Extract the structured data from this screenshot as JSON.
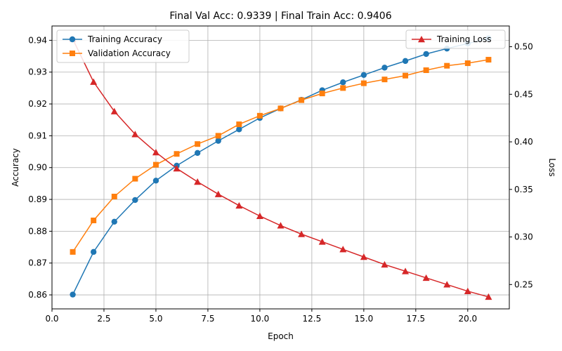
{
  "chart_data": {
    "type": "line",
    "title": "Final Val Acc: 0.9339 | Final Train Acc: 0.9406",
    "xlabel": "Epoch",
    "ylabel_left": "Accuracy",
    "ylabel_right": "Loss",
    "xlim": [
      0,
      22
    ],
    "ylim_left": [
      0.8556,
      0.9445
    ],
    "ylim_right": [
      0.2244,
      0.5218
    ],
    "x_ticks": [
      0.0,
      2.5,
      5.0,
      7.5,
      10.0,
      12.5,
      15.0,
      17.5,
      20.0
    ],
    "x_tick_labels": [
      "0.0",
      "2.5",
      "5.0",
      "7.5",
      "10.0",
      "12.5",
      "15.0",
      "17.5",
      "20.0"
    ],
    "y_left_ticks": [
      0.86,
      0.87,
      0.88,
      0.89,
      0.9,
      0.91,
      0.92,
      0.93,
      0.94
    ],
    "y_left_tick_labels": [
      "0.86",
      "0.87",
      "0.88",
      "0.89",
      "0.90",
      "0.91",
      "0.92",
      "0.93",
      "0.94"
    ],
    "y_right_ticks": [
      0.25,
      0.3,
      0.35,
      0.4,
      0.45,
      0.5
    ],
    "y_right_tick_labels": [
      "0.25",
      "0.30",
      "0.35",
      "0.40",
      "0.45",
      "0.50"
    ],
    "grid": true,
    "x": [
      1,
      2,
      3,
      4,
      5,
      6,
      7,
      8,
      9,
      10,
      11,
      12,
      13,
      14,
      15,
      16,
      17,
      18,
      19,
      20,
      21
    ],
    "series": [
      {
        "name": "Training Accuracy",
        "axis": "left",
        "color": "#1f77b4",
        "marker": "circle",
        "values": [
          0.8601,
          0.8735,
          0.883,
          0.8898,
          0.8959,
          0.9006,
          0.9046,
          0.9084,
          0.912,
          0.9156,
          0.9186,
          0.9213,
          0.9243,
          0.9268,
          0.9291,
          0.9314,
          0.9335,
          0.9357,
          0.9374,
          0.939,
          0.9406
        ]
      },
      {
        "name": "Validation Accuracy",
        "axis": "left",
        "color": "#ff7f0e",
        "marker": "square",
        "values": [
          0.8735,
          0.8834,
          0.8909,
          0.8965,
          0.9009,
          0.9043,
          0.9074,
          0.91,
          0.9136,
          0.9163,
          0.9186,
          0.9212,
          0.9233,
          0.925,
          0.9265,
          0.9277,
          0.9289,
          0.9306,
          0.932,
          0.9328,
          0.9339
        ]
      },
      {
        "name": "Training Loss",
        "axis": "right",
        "color": "#d62728",
        "marker": "triangle",
        "values": [
          0.508,
          0.463,
          0.432,
          0.408,
          0.389,
          0.372,
          0.358,
          0.345,
          0.333,
          0.322,
          0.312,
          0.303,
          0.295,
          0.287,
          0.279,
          0.271,
          0.264,
          0.257,
          0.25,
          0.243,
          0.237
        ]
      }
    ],
    "legend_left": {
      "placement": "top-left",
      "entries": [
        "Training Accuracy",
        "Validation Accuracy"
      ]
    },
    "legend_right": {
      "placement": "top-right",
      "entries": [
        "Training Loss"
      ]
    }
  }
}
